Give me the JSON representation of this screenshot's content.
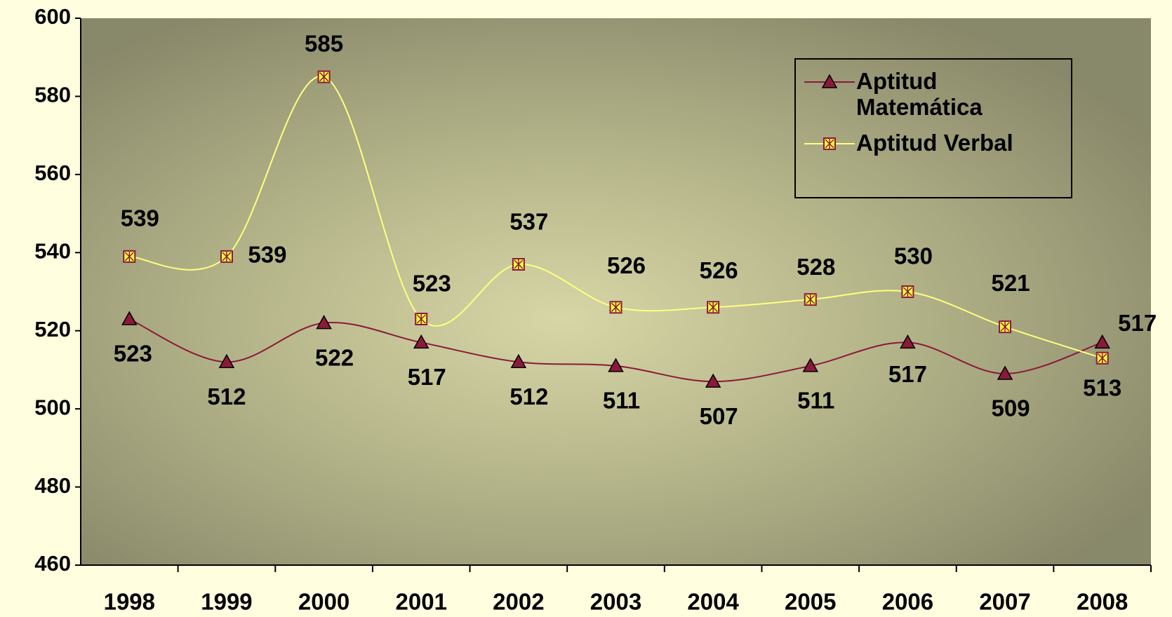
{
  "chart_data": {
    "type": "line",
    "categories": [
      "1998",
      "1999",
      "2000",
      "2001",
      "2002",
      "2003",
      "2004",
      "2005",
      "2006",
      "2007",
      "2008"
    ],
    "series": [
      {
        "name": "Aptitud Matemática",
        "color": "#8b1a3a",
        "values": [
          523,
          512,
          522,
          517,
          512,
          511,
          507,
          511,
          517,
          509,
          517
        ]
      },
      {
        "name": "Aptitud Verbal",
        "color": "#ffff80",
        "values": [
          539,
          539,
          585,
          523,
          537,
          526,
          526,
          528,
          530,
          521,
          513
        ]
      }
    ],
    "ylim": [
      460,
      600
    ],
    "yticks": [
      460,
      480,
      500,
      520,
      540,
      560,
      580,
      600
    ],
    "legend": "upper right"
  }
}
